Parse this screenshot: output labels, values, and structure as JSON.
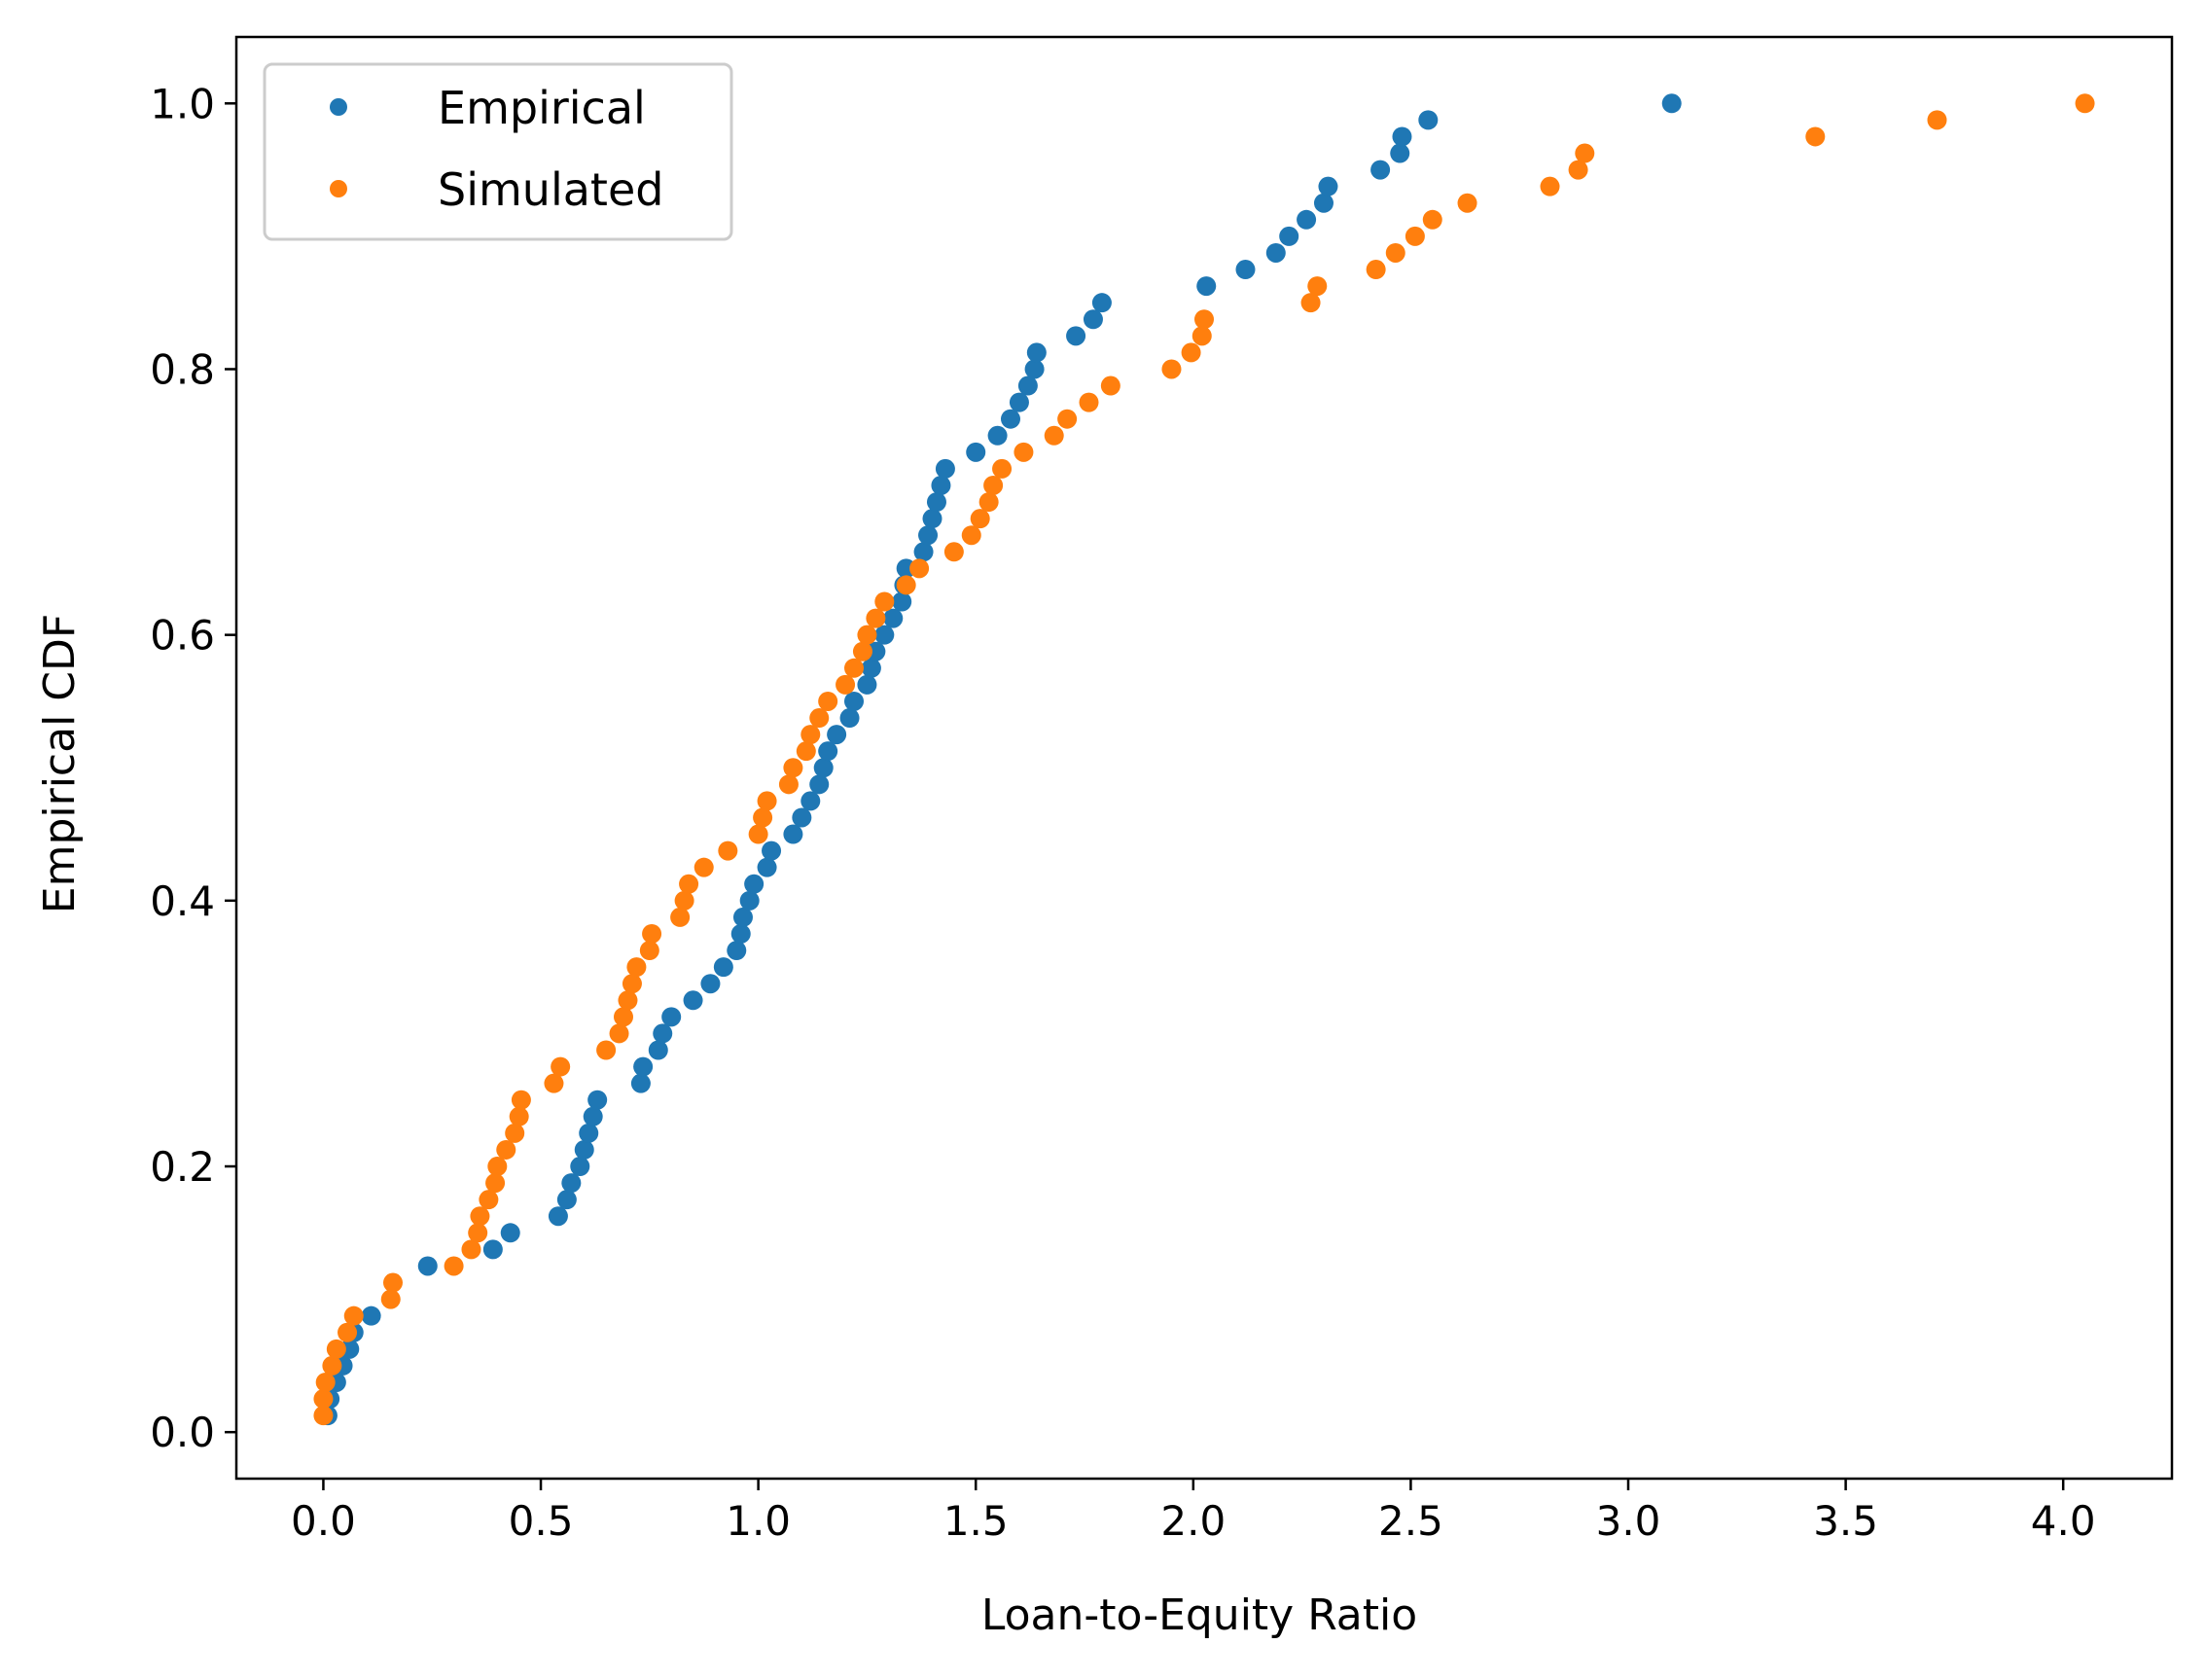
{
  "chart_data": {
    "type": "scatter",
    "xlabel": "Loan-to-Equity Ratio",
    "ylabel": "Empirical CDF",
    "xlim": [
      -0.2,
      4.25
    ],
    "ylim": [
      -0.035,
      1.05
    ],
    "xticks": [
      {
        "value": 0.0,
        "label": "0.0"
      },
      {
        "value": 0.5,
        "label": "0.5"
      },
      {
        "value": 1.0,
        "label": "1.0"
      },
      {
        "value": 1.5,
        "label": "1.5"
      },
      {
        "value": 2.0,
        "label": "2.0"
      },
      {
        "value": 2.5,
        "label": "2.5"
      },
      {
        "value": 3.0,
        "label": "3.0"
      },
      {
        "value": 3.5,
        "label": "3.5"
      },
      {
        "value": 4.0,
        "label": "4.0"
      }
    ],
    "yticks": [
      {
        "value": 0.0,
        "label": "0.0"
      },
      {
        "value": 0.2,
        "label": "0.2"
      },
      {
        "value": 0.4,
        "label": "0.4"
      },
      {
        "value": 0.6,
        "label": "0.6"
      },
      {
        "value": 0.8,
        "label": "0.8"
      },
      {
        "value": 1.0,
        "label": "1.0"
      }
    ],
    "grid": false,
    "legend_position": "top-left",
    "series": [
      {
        "name": "Empirical",
        "color": "#1f77b4",
        "points": [
          [
            0.01,
            0.0125
          ],
          [
            0.015,
            0.025
          ],
          [
            0.03,
            0.0375
          ],
          [
            0.045,
            0.05
          ],
          [
            0.06,
            0.0625
          ],
          [
            0.07,
            0.075
          ],
          [
            0.11,
            0.0875
          ],
          [
            0.24,
            0.125
          ],
          [
            0.39,
            0.1375
          ],
          [
            0.43,
            0.15
          ],
          [
            0.54,
            0.1625
          ],
          [
            0.56,
            0.175
          ],
          [
            0.57,
            0.1875
          ],
          [
            0.59,
            0.2
          ],
          [
            0.6,
            0.2125
          ],
          [
            0.61,
            0.225
          ],
          [
            0.62,
            0.2375
          ],
          [
            0.63,
            0.25
          ],
          [
            0.73,
            0.2625
          ],
          [
            0.735,
            0.275
          ],
          [
            0.77,
            0.2875
          ],
          [
            0.78,
            0.3
          ],
          [
            0.8,
            0.3125
          ],
          [
            0.85,
            0.325
          ],
          [
            0.89,
            0.3375
          ],
          [
            0.92,
            0.35
          ],
          [
            0.95,
            0.3625
          ],
          [
            0.96,
            0.375
          ],
          [
            0.965,
            0.3875
          ],
          [
            0.98,
            0.4
          ],
          [
            0.99,
            0.4125
          ],
          [
            1.02,
            0.425
          ],
          [
            1.03,
            0.4375
          ],
          [
            1.08,
            0.45
          ],
          [
            1.1,
            0.4625
          ],
          [
            1.12,
            0.475
          ],
          [
            1.14,
            0.4875
          ],
          [
            1.15,
            0.5
          ],
          [
            1.16,
            0.5125
          ],
          [
            1.18,
            0.525
          ],
          [
            1.21,
            0.5375
          ],
          [
            1.22,
            0.55
          ],
          [
            1.25,
            0.5625
          ],
          [
            1.26,
            0.575
          ],
          [
            1.27,
            0.5875
          ],
          [
            1.29,
            0.6
          ],
          [
            1.31,
            0.6125
          ],
          [
            1.33,
            0.625
          ],
          [
            1.335,
            0.6375
          ],
          [
            1.34,
            0.65
          ],
          [
            1.38,
            0.6625
          ],
          [
            1.39,
            0.675
          ],
          [
            1.4,
            0.6875
          ],
          [
            1.41,
            0.7
          ],
          [
            1.42,
            0.7125
          ],
          [
            1.43,
            0.725
          ],
          [
            1.5,
            0.7375
          ],
          [
            1.55,
            0.75
          ],
          [
            1.58,
            0.7625
          ],
          [
            1.6,
            0.775
          ],
          [
            1.62,
            0.7875
          ],
          [
            1.635,
            0.8
          ],
          [
            1.64,
            0.8125
          ],
          [
            1.73,
            0.825
          ],
          [
            1.77,
            0.8375
          ],
          [
            1.79,
            0.85
          ],
          [
            2.03,
            0.8625
          ],
          [
            2.12,
            0.875
          ],
          [
            2.19,
            0.8875
          ],
          [
            2.22,
            0.9
          ],
          [
            2.26,
            0.9125
          ],
          [
            2.3,
            0.925
          ],
          [
            2.31,
            0.9375
          ],
          [
            2.43,
            0.95
          ],
          [
            2.475,
            0.9625
          ],
          [
            2.48,
            0.975
          ],
          [
            2.54,
            0.9875
          ],
          [
            3.1,
            1.0
          ]
        ]
      },
      {
        "name": "Simulated",
        "color": "#ff7f0e",
        "points": [
          [
            0.0,
            0.0125
          ],
          [
            0.0,
            0.025
          ],
          [
            0.005,
            0.0375
          ],
          [
            0.02,
            0.05
          ],
          [
            0.03,
            0.0625
          ],
          [
            0.055,
            0.075
          ],
          [
            0.07,
            0.0875
          ],
          [
            0.155,
            0.1
          ],
          [
            0.16,
            0.1125
          ],
          [
            0.3,
            0.125
          ],
          [
            0.34,
            0.1375
          ],
          [
            0.355,
            0.15
          ],
          [
            0.36,
            0.1625
          ],
          [
            0.38,
            0.175
          ],
          [
            0.395,
            0.1875
          ],
          [
            0.4,
            0.2
          ],
          [
            0.42,
            0.2125
          ],
          [
            0.44,
            0.225
          ],
          [
            0.45,
            0.2375
          ],
          [
            0.455,
            0.25
          ],
          [
            0.53,
            0.2625
          ],
          [
            0.545,
            0.275
          ],
          [
            0.65,
            0.2875
          ],
          [
            0.68,
            0.3
          ],
          [
            0.69,
            0.3125
          ],
          [
            0.7,
            0.325
          ],
          [
            0.71,
            0.3375
          ],
          [
            0.72,
            0.35
          ],
          [
            0.75,
            0.3625
          ],
          [
            0.755,
            0.375
          ],
          [
            0.82,
            0.3875
          ],
          [
            0.83,
            0.4
          ],
          [
            0.84,
            0.4125
          ],
          [
            0.875,
            0.425
          ],
          [
            0.93,
            0.4375
          ],
          [
            1.0,
            0.45
          ],
          [
            1.01,
            0.4625
          ],
          [
            1.02,
            0.475
          ],
          [
            1.07,
            0.4875
          ],
          [
            1.08,
            0.5
          ],
          [
            1.11,
            0.5125
          ],
          [
            1.12,
            0.525
          ],
          [
            1.14,
            0.5375
          ],
          [
            1.16,
            0.55
          ],
          [
            1.2,
            0.5625
          ],
          [
            1.22,
            0.575
          ],
          [
            1.24,
            0.5875
          ],
          [
            1.25,
            0.6
          ],
          [
            1.27,
            0.6125
          ],
          [
            1.29,
            0.625
          ],
          [
            1.34,
            0.6375
          ],
          [
            1.37,
            0.65
          ],
          [
            1.45,
            0.6625
          ],
          [
            1.49,
            0.675
          ],
          [
            1.51,
            0.6875
          ],
          [
            1.53,
            0.7
          ],
          [
            1.54,
            0.7125
          ],
          [
            1.56,
            0.725
          ],
          [
            1.61,
            0.7375
          ],
          [
            1.68,
            0.75
          ],
          [
            1.71,
            0.7625
          ],
          [
            1.76,
            0.775
          ],
          [
            1.81,
            0.7875
          ],
          [
            1.95,
            0.8
          ],
          [
            1.995,
            0.8125
          ],
          [
            2.02,
            0.825
          ],
          [
            2.025,
            0.8375
          ],
          [
            2.27,
            0.85
          ],
          [
            2.285,
            0.8625
          ],
          [
            2.42,
            0.875
          ],
          [
            2.465,
            0.8875
          ],
          [
            2.51,
            0.9
          ],
          [
            2.55,
            0.9125
          ],
          [
            2.63,
            0.925
          ],
          [
            2.82,
            0.9375
          ],
          [
            2.885,
            0.95
          ],
          [
            2.9,
            0.9625
          ],
          [
            3.43,
            0.975
          ],
          [
            3.71,
            0.9875
          ],
          [
            4.05,
            1.0
          ]
        ]
      }
    ]
  }
}
